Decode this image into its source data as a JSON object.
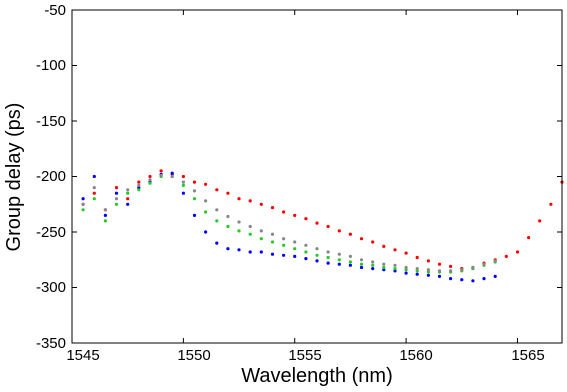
{
  "chart_data": {
    "type": "scatter",
    "xlabel": "Wavelength (nm)",
    "ylabel": "Group delay (ps)",
    "xlim": [
      1545,
      1567
    ],
    "ylim": [
      -350,
      -50
    ],
    "xticks": [
      "1545",
      "1550",
      "1555",
      "1560",
      "1565"
    ],
    "yticks": [
      "-50",
      "-100",
      "-150",
      "-200",
      "-250",
      "-300",
      "-350"
    ],
    "grid": false,
    "series": [
      {
        "color": "#ff0000",
        "points": [
          [
            1545.5,
            -225
          ],
          [
            1546,
            -215
          ],
          [
            1546.5,
            -230
          ],
          [
            1547,
            -210
          ],
          [
            1547.5,
            -220
          ],
          [
            1548,
            -205
          ],
          [
            1548.5,
            -200
          ],
          [
            1549,
            -195
          ],
          [
            1549.5,
            -198
          ],
          [
            1550,
            -200
          ],
          [
            1550.5,
            -205
          ],
          [
            1551,
            -207
          ],
          [
            1551.5,
            -212
          ],
          [
            1552,
            -215
          ],
          [
            1552.5,
            -220
          ],
          [
            1553,
            -222
          ],
          [
            1553.5,
            -225
          ],
          [
            1554,
            -228
          ],
          [
            1554.5,
            -232
          ],
          [
            1555,
            -235
          ],
          [
            1555.5,
            -238
          ],
          [
            1556,
            -242
          ],
          [
            1556.5,
            -245
          ],
          [
            1557,
            -249
          ],
          [
            1557.5,
            -252
          ],
          [
            1558,
            -256
          ],
          [
            1558.5,
            -259
          ],
          [
            1559,
            -263
          ],
          [
            1559.5,
            -266
          ],
          [
            1560,
            -269
          ],
          [
            1560.5,
            -273
          ],
          [
            1561,
            -276
          ],
          [
            1561.5,
            -279
          ],
          [
            1562,
            -281
          ],
          [
            1562.5,
            -283
          ],
          [
            1563,
            -282
          ],
          [
            1563.5,
            -278
          ],
          [
            1564,
            -275
          ],
          [
            1564.5,
            -272
          ],
          [
            1565,
            -268
          ],
          [
            1565.5,
            -255
          ],
          [
            1566,
            -240
          ],
          [
            1566.5,
            -225
          ],
          [
            1567,
            -205
          ]
        ]
      },
      {
        "color": "#0000ff",
        "points": [
          [
            1545.5,
            -220
          ],
          [
            1546,
            -200
          ],
          [
            1546.5,
            -235
          ],
          [
            1547,
            -215
          ],
          [
            1547.5,
            -225
          ],
          [
            1548,
            -210
          ],
          [
            1548.5,
            -205
          ],
          [
            1549,
            -198
          ],
          [
            1549.5,
            -197
          ],
          [
            1550,
            -215
          ],
          [
            1550.5,
            -235
          ],
          [
            1551,
            -250
          ],
          [
            1551.5,
            -260
          ],
          [
            1552,
            -265
          ],
          [
            1552.5,
            -266
          ],
          [
            1553,
            -268
          ],
          [
            1553.5,
            -268
          ],
          [
            1554,
            -270
          ],
          [
            1554.5,
            -271
          ],
          [
            1555,
            -272
          ],
          [
            1555.5,
            -274
          ],
          [
            1556,
            -276
          ],
          [
            1556.5,
            -278
          ],
          [
            1557,
            -279
          ],
          [
            1557.5,
            -280
          ],
          [
            1558,
            -282
          ],
          [
            1558.5,
            -283
          ],
          [
            1559,
            -284
          ],
          [
            1559.5,
            -285
          ],
          [
            1560,
            -287
          ],
          [
            1560.5,
            -288
          ],
          [
            1561,
            -289
          ],
          [
            1561.5,
            -290
          ],
          [
            1562,
            -292
          ],
          [
            1562.5,
            -293
          ],
          [
            1563,
            -294
          ],
          [
            1563.5,
            -292
          ],
          [
            1564,
            -290
          ]
        ]
      },
      {
        "color": "#22cc22",
        "points": [
          [
            1545.5,
            -230
          ],
          [
            1546,
            -220
          ],
          [
            1546.5,
            -240
          ],
          [
            1547,
            -225
          ],
          [
            1547.5,
            -215
          ],
          [
            1548,
            -212
          ],
          [
            1548.5,
            -206
          ],
          [
            1549,
            -200
          ],
          [
            1549.5,
            -200
          ],
          [
            1550,
            -208
          ],
          [
            1550.5,
            -220
          ],
          [
            1551,
            -232
          ],
          [
            1551.5,
            -240
          ],
          [
            1552,
            -245
          ],
          [
            1552.5,
            -249
          ],
          [
            1553,
            -252
          ],
          [
            1553.5,
            -256
          ],
          [
            1554,
            -259
          ],
          [
            1554.5,
            -262
          ],
          [
            1555,
            -265
          ],
          [
            1555.5,
            -268
          ],
          [
            1556,
            -271
          ],
          [
            1556.5,
            -273
          ],
          [
            1557,
            -275
          ],
          [
            1557.5,
            -277
          ],
          [
            1558,
            -279
          ],
          [
            1558.5,
            -280
          ],
          [
            1559,
            -282
          ],
          [
            1559.5,
            -283
          ],
          [
            1560,
            -284
          ],
          [
            1560.5,
            -285
          ],
          [
            1561,
            -286
          ],
          [
            1561.5,
            -286
          ],
          [
            1562,
            -286
          ],
          [
            1562.5,
            -285
          ],
          [
            1563,
            -283
          ],
          [
            1563.5,
            -280
          ],
          [
            1564,
            -277
          ]
        ]
      },
      {
        "color": "#888888",
        "points": [
          [
            1545.5,
            -225
          ],
          [
            1546,
            -210
          ],
          [
            1546.5,
            -230
          ],
          [
            1547,
            -220
          ],
          [
            1547.5,
            -212
          ],
          [
            1548,
            -208
          ],
          [
            1548.5,
            -203
          ],
          [
            1549,
            -199
          ],
          [
            1549.5,
            -200
          ],
          [
            1550,
            -205
          ],
          [
            1550.5,
            -213
          ],
          [
            1551,
            -222
          ],
          [
            1551.5,
            -230
          ],
          [
            1552,
            -236
          ],
          [
            1552.5,
            -241
          ],
          [
            1553,
            -245
          ],
          [
            1553.5,
            -249
          ],
          [
            1554,
            -252
          ],
          [
            1554.5,
            -256
          ],
          [
            1555,
            -259
          ],
          [
            1555.5,
            -262
          ],
          [
            1556,
            -265
          ],
          [
            1556.5,
            -268
          ],
          [
            1557,
            -270
          ],
          [
            1557.5,
            -272
          ],
          [
            1558,
            -275
          ],
          [
            1558.5,
            -277
          ],
          [
            1559,
            -279
          ],
          [
            1559.5,
            -280
          ],
          [
            1560,
            -282
          ],
          [
            1560.5,
            -283
          ],
          [
            1561,
            -284
          ],
          [
            1561.5,
            -285
          ],
          [
            1562,
            -285
          ],
          [
            1562.5,
            -284
          ],
          [
            1563,
            -282
          ],
          [
            1563.5,
            -279
          ],
          [
            1564,
            -276
          ]
        ]
      }
    ]
  }
}
